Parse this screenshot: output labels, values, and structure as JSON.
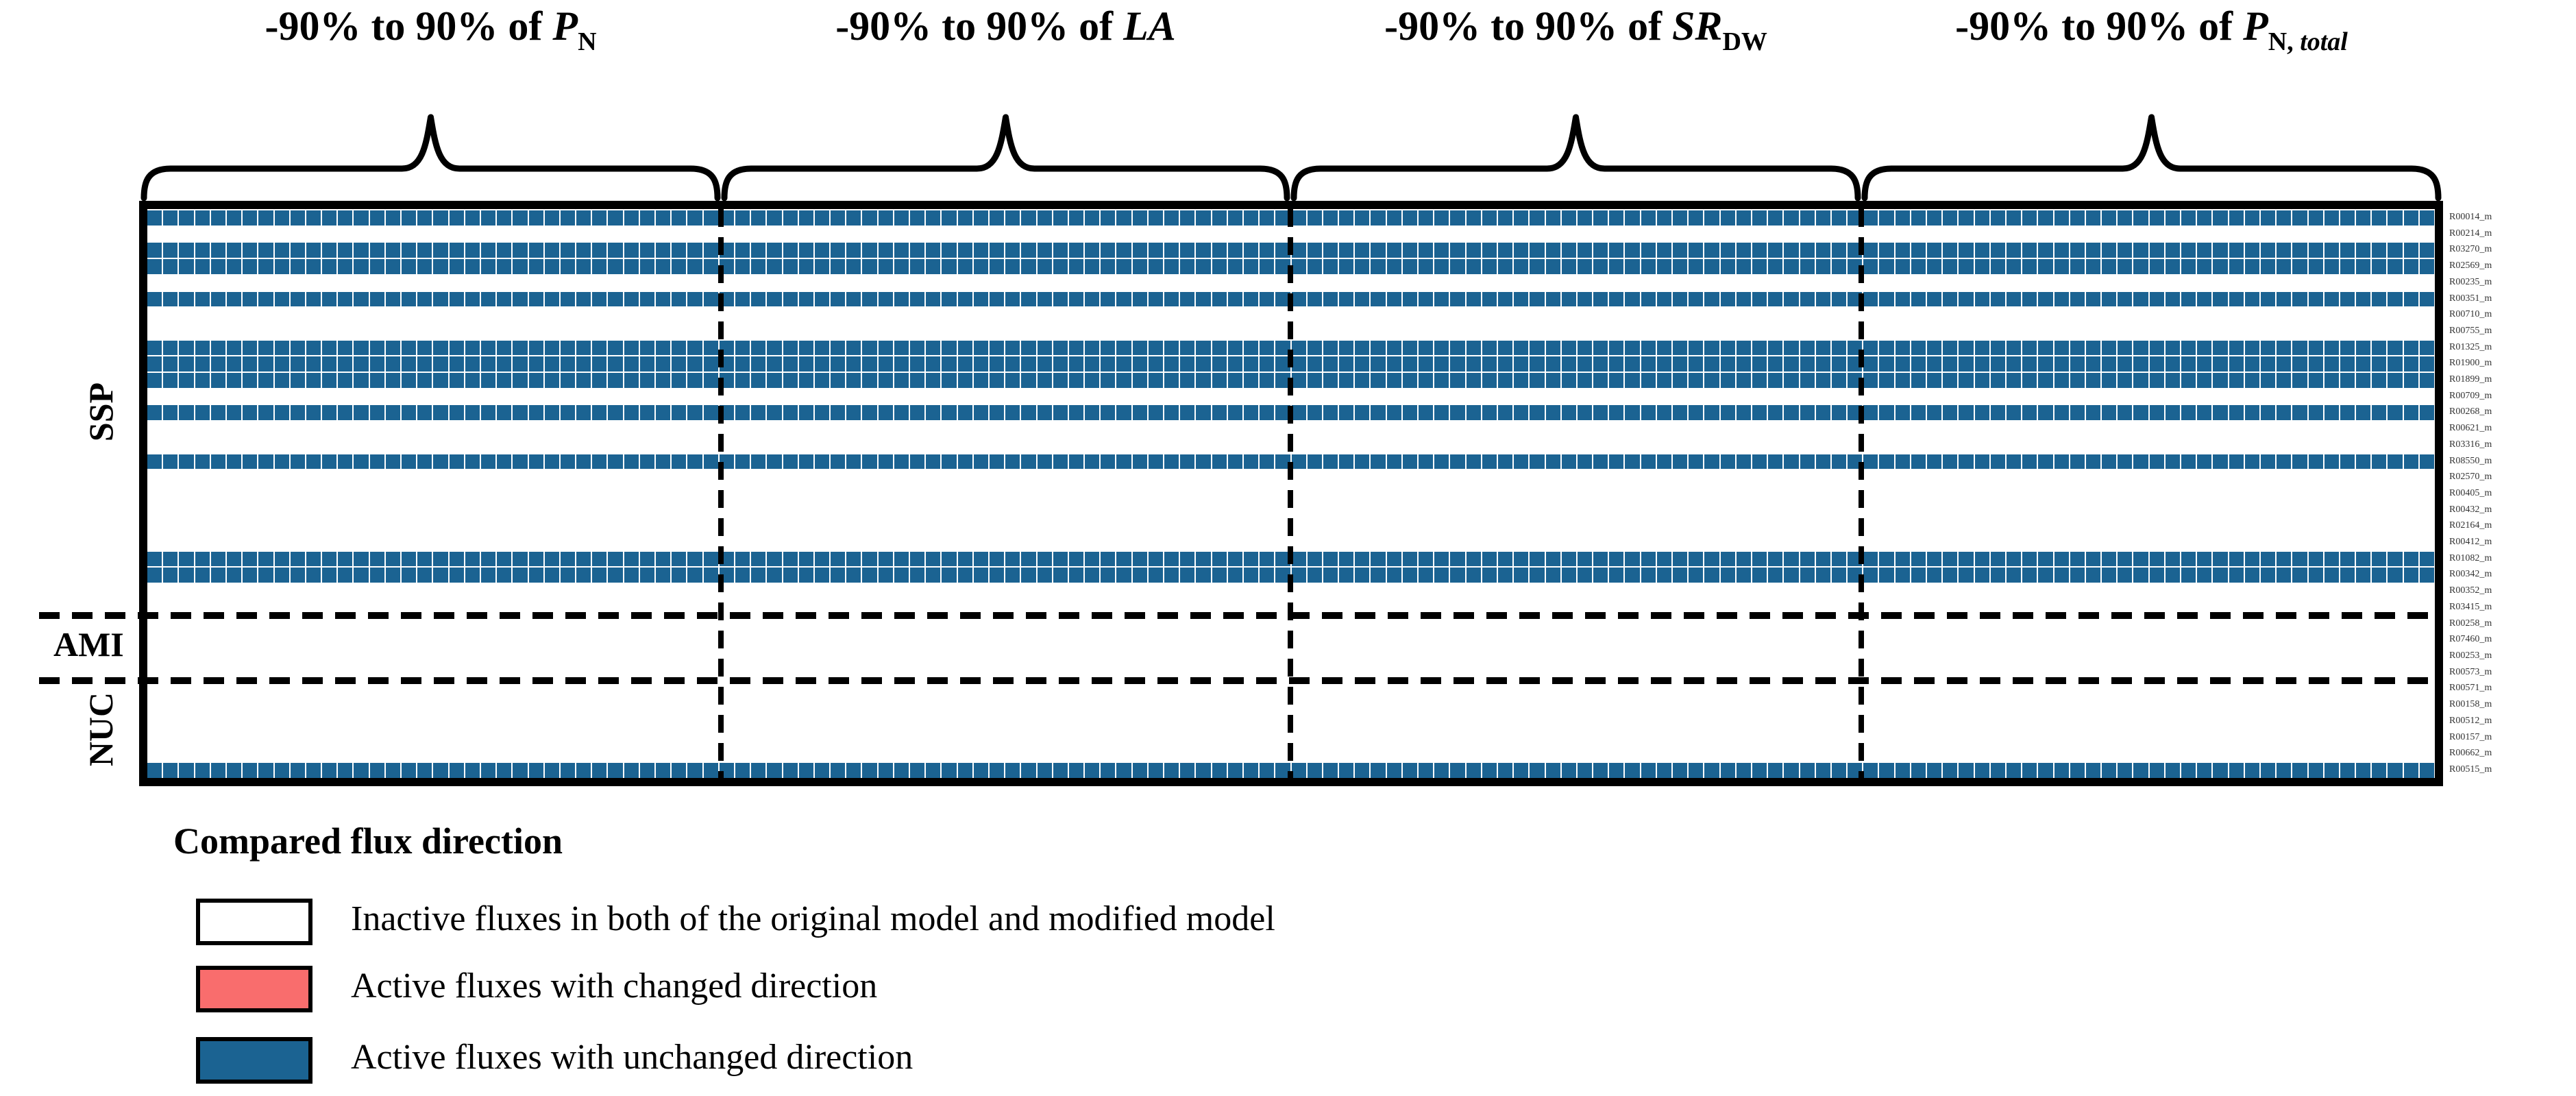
{
  "chart_data": {
    "type": "heatmap",
    "title": "Compared flux direction of original vs modified model under parameter perturbation",
    "columns_per_panel": 36,
    "perturbation_range": "-90% to 90%",
    "panels": [
      {
        "prefix": "-90% to 90% of ",
        "variable": "P",
        "subscript": [
          {
            "t": "N",
            "i": false
          }
        ]
      },
      {
        "prefix": "-90% to 90% of ",
        "variable": "LA",
        "subscript": []
      },
      {
        "prefix": "-90% to 90% of ",
        "variable": "SR",
        "subscript": [
          {
            "t": "DW",
            "i": false
          }
        ]
      },
      {
        "prefix": "-90% to 90% of ",
        "variable": "P",
        "subscript": [
          {
            "t": "N, ",
            "i": false
          },
          {
            "t": "total",
            "i": true
          }
        ]
      }
    ],
    "row_groups": [
      {
        "name": "SSP",
        "rows": 25
      },
      {
        "name": "AMI",
        "rows": 4
      },
      {
        "name": "NUC",
        "rows": 6
      }
    ],
    "rows": [
      {
        "id": "R00014_m",
        "group": "SSP",
        "state": "unchanged"
      },
      {
        "id": "R00214_m",
        "group": "SSP",
        "state": "inactive"
      },
      {
        "id": "R03270_m",
        "group": "SSP",
        "state": "unchanged"
      },
      {
        "id": "R02569_m",
        "group": "SSP",
        "state": "unchanged"
      },
      {
        "id": "R00235_m",
        "group": "SSP",
        "state": "inactive"
      },
      {
        "id": "R00351_m",
        "group": "SSP",
        "state": "unchanged"
      },
      {
        "id": "R00710_m",
        "group": "SSP",
        "state": "inactive"
      },
      {
        "id": "R00755_m",
        "group": "SSP",
        "state": "inactive"
      },
      {
        "id": "R01325_m",
        "group": "SSP",
        "state": "unchanged"
      },
      {
        "id": "R01900_m",
        "group": "SSP",
        "state": "unchanged"
      },
      {
        "id": "R01899_m",
        "group": "SSP",
        "state": "unchanged"
      },
      {
        "id": "R00709_m",
        "group": "SSP",
        "state": "inactive"
      },
      {
        "id": "R00268_m",
        "group": "SSP",
        "state": "unchanged"
      },
      {
        "id": "R00621_m",
        "group": "SSP",
        "state": "inactive"
      },
      {
        "id": "R03316_m",
        "group": "SSP",
        "state": "inactive"
      },
      {
        "id": "R08550_m",
        "group": "SSP",
        "state": "unchanged"
      },
      {
        "id": "R02570_m",
        "group": "SSP",
        "state": "inactive"
      },
      {
        "id": "R00405_m",
        "group": "SSP",
        "state": "inactive"
      },
      {
        "id": "R00432_m",
        "group": "SSP",
        "state": "inactive"
      },
      {
        "id": "R02164_m",
        "group": "SSP",
        "state": "inactive"
      },
      {
        "id": "R00412_m",
        "group": "SSP",
        "state": "inactive"
      },
      {
        "id": "R01082_m",
        "group": "SSP",
        "state": "unchanged"
      },
      {
        "id": "R00342_m",
        "group": "SSP",
        "state": "unchanged"
      },
      {
        "id": "R00352_m",
        "group": "SSP",
        "state": "inactive"
      },
      {
        "id": "R03415_m",
        "group": "SSP",
        "state": "inactive"
      },
      {
        "id": "R00258_m",
        "group": "AMI",
        "state": "inactive"
      },
      {
        "id": "R07460_m",
        "group": "AMI",
        "state": "inactive"
      },
      {
        "id": "R00253_m",
        "group": "AMI",
        "state": "inactive"
      },
      {
        "id": "R00573_m",
        "group": "AMI",
        "state": "inactive"
      },
      {
        "id": "R00571_m",
        "group": "NUC",
        "state": "inactive"
      },
      {
        "id": "R00158_m",
        "group": "NUC",
        "state": "inactive"
      },
      {
        "id": "R00512_m",
        "group": "NUC",
        "state": "inactive"
      },
      {
        "id": "R00157_m",
        "group": "NUC",
        "state": "inactive"
      },
      {
        "id": "R00662_m",
        "group": "NUC",
        "state": "inactive"
      },
      {
        "id": "R00515_m",
        "group": "NUC",
        "state": "unchanged"
      }
    ],
    "cell_states": {
      "inactive": "#FFFFFF",
      "changed": "#F96D6D",
      "unchanged": "#1B6392"
    }
  },
  "legend": {
    "title": "Compared flux direction",
    "items": [
      {
        "swatch_color": "#FFFFFF",
        "label": "Inactive fluxes in both of the original model and modified model"
      },
      {
        "swatch_color": "#F96D6D",
        "label": "Active fluxes with changed direction"
      },
      {
        "swatch_color": "#1B6392",
        "label": "Active fluxes with unchanged direction"
      }
    ]
  },
  "colors": {
    "active_unchanged": "#1B6392",
    "active_changed": "#F96D6D",
    "inactive": "#FFFFFF",
    "frame": "#000000",
    "row_label_text": "#333333"
  }
}
